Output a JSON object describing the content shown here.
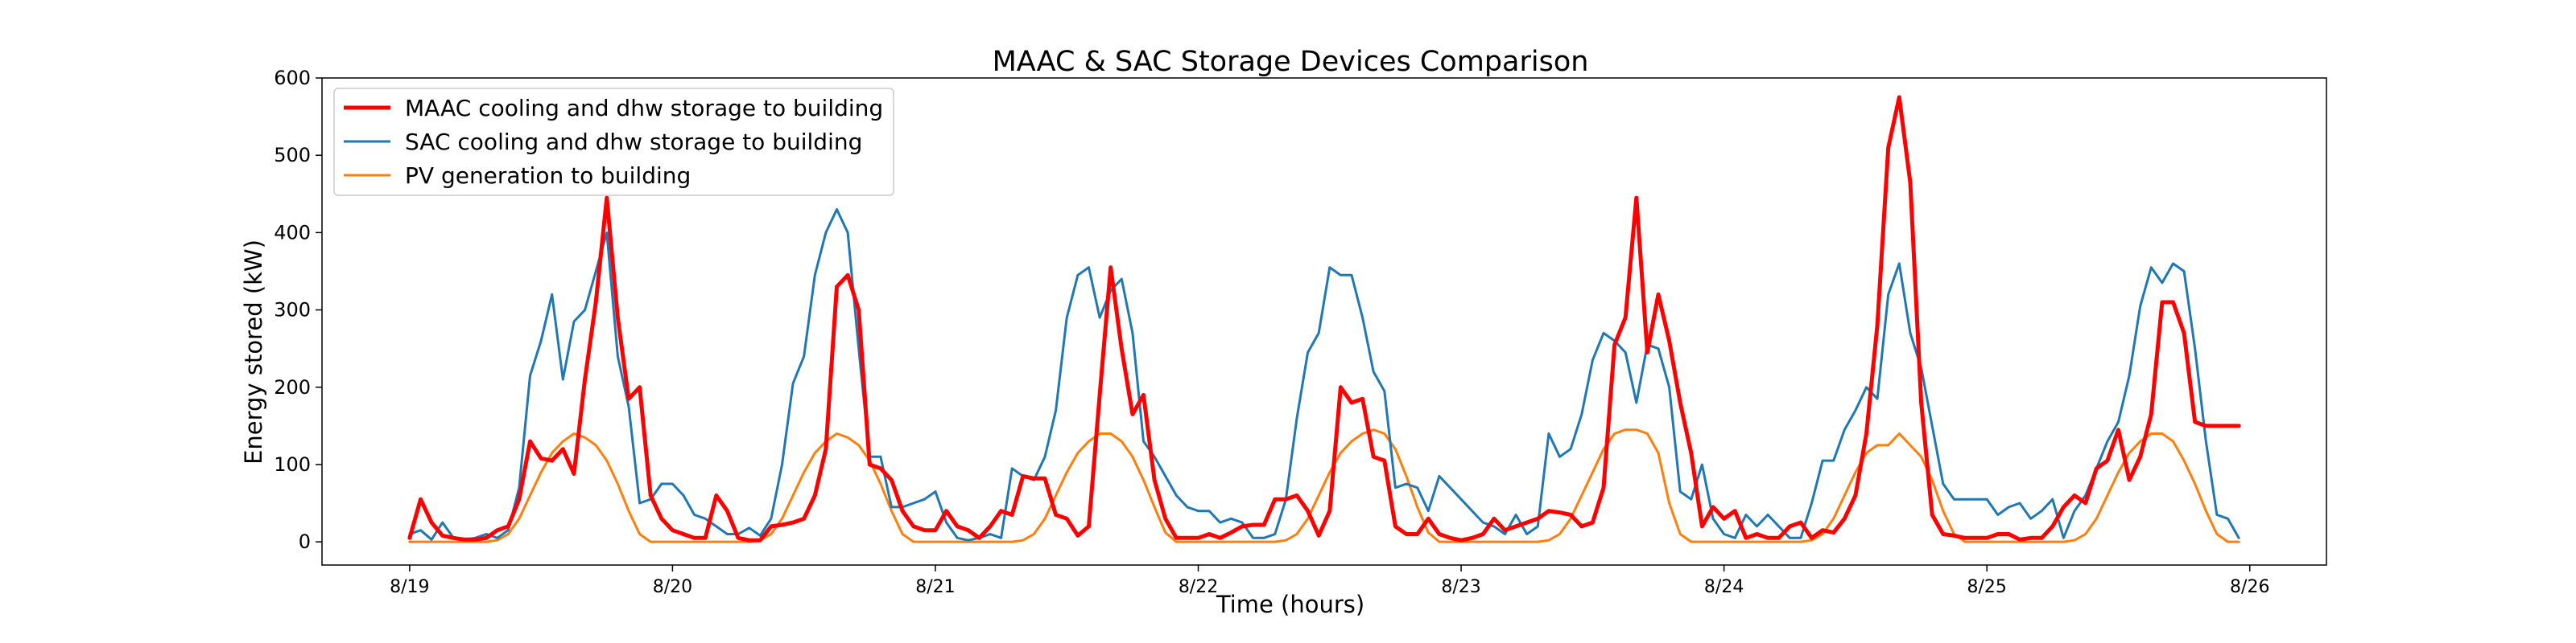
{
  "chart_data": {
    "type": "line",
    "title": "MAAC & SAC Storage Devices Comparison",
    "xlabel": "Time (hours)",
    "ylabel": "Energy stored (kW)",
    "ylim": [
      -30,
      600
    ],
    "yticks": [
      0,
      100,
      200,
      300,
      400,
      500,
      600
    ],
    "ytick_labels": [
      "0",
      "100",
      "200",
      "300",
      "400",
      "500",
      "600"
    ],
    "xlim_hours": [
      -8,
      175
    ],
    "xticks": [
      0,
      24,
      48,
      72,
      96,
      120,
      144,
      168
    ],
    "xtick_labels": [
      "8/19",
      "8/20",
      "8/21",
      "8/22",
      "8/23",
      "8/24",
      "8/25",
      "8/26"
    ],
    "x_units": "hours from 8/19 00:00, hourly samples 0 to 167",
    "grid": false,
    "legend": "top-left",
    "series": [
      {
        "name": "MAAC cooling and dhw storage to building",
        "color": "#ff0000",
        "linewidth": "thick",
        "values": [
          5,
          55,
          25,
          8,
          5,
          3,
          3,
          5,
          15,
          20,
          55,
          130,
          108,
          105,
          120,
          88,
          210,
          310,
          445,
          290,
          185,
          200,
          60,
          30,
          15,
          10,
          5,
          5,
          60,
          40,
          5,
          2,
          2,
          20,
          22,
          25,
          30,
          60,
          120,
          330,
          345,
          300,
          100,
          95,
          80,
          40,
          20,
          15,
          15,
          40,
          20,
          15,
          5,
          20,
          40,
          35,
          85,
          82,
          82,
          35,
          30,
          8,
          20,
          190,
          355,
          250,
          165,
          190,
          80,
          30,
          5,
          5,
          5,
          10,
          5,
          12,
          20,
          22,
          22,
          55,
          55,
          60,
          40,
          8,
          40,
          200,
          180,
          185,
          110,
          105,
          20,
          10,
          10,
          30,
          10,
          5,
          2,
          5,
          10,
          30,
          15,
          20,
          25,
          30,
          40,
          38,
          35,
          20,
          25,
          70,
          255,
          290,
          445,
          245,
          320,
          260,
          180,
          115,
          20,
          45,
          30,
          40,
          5,
          10,
          5,
          5,
          20,
          25,
          5,
          15,
          12,
          30,
          60,
          140,
          280,
          510,
          575,
          465,
          180,
          35,
          10,
          8,
          5,
          5,
          5,
          10,
          10,
          3,
          5,
          5,
          20,
          45,
          60,
          50,
          95,
          105,
          145,
          80,
          110,
          165,
          310,
          310,
          270,
          155,
          150,
          150,
          150,
          150
        ]
      },
      {
        "name": "SAC cooling and dhw storage to building",
        "color": "#1f77b4",
        "linewidth": "normal",
        "values": [
          10,
          15,
          3,
          25,
          5,
          3,
          5,
          10,
          5,
          15,
          70,
          215,
          260,
          320,
          210,
          285,
          300,
          350,
          400,
          240,
          175,
          50,
          55,
          75,
          75,
          60,
          35,
          30,
          20,
          10,
          10,
          18,
          8,
          30,
          100,
          205,
          240,
          345,
          400,
          430,
          400,
          250,
          110,
          110,
          45,
          45,
          50,
          55,
          65,
          25,
          5,
          2,
          5,
          10,
          5,
          95,
          85,
          80,
          110,
          170,
          290,
          345,
          355,
          290,
          325,
          340,
          270,
          130,
          110,
          85,
          60,
          45,
          40,
          40,
          25,
          30,
          25,
          5,
          5,
          10,
          55,
          160,
          245,
          270,
          355,
          345,
          345,
          290,
          220,
          195,
          70,
          75,
          70,
          40,
          85,
          70,
          55,
          40,
          25,
          20,
          10,
          35,
          10,
          20,
          140,
          110,
          120,
          165,
          235,
          270,
          260,
          245,
          180,
          255,
          250,
          200,
          65,
          55,
          100,
          30,
          10,
          5,
          35,
          20,
          35,
          20,
          5,
          5,
          50,
          105,
          105,
          145,
          170,
          200,
          185,
          320,
          360,
          270,
          225,
          150,
          75,
          55,
          55,
          55,
          55,
          35,
          45,
          50,
          30,
          40,
          55,
          5,
          40,
          60,
          95,
          130,
          155,
          215,
          305,
          355,
          335,
          360,
          350,
          250,
          130,
          35,
          30,
          5
        ]
      },
      {
        "name": "PV generation to building",
        "color": "#ff7f0e",
        "linewidth": "normal",
        "values": [
          0,
          0,
          0,
          0,
          0,
          0,
          0,
          0,
          2,
          10,
          30,
          60,
          90,
          115,
          130,
          140,
          135,
          125,
          105,
          75,
          40,
          10,
          0,
          0,
          0,
          0,
          0,
          0,
          0,
          0,
          0,
          0,
          2,
          10,
          30,
          60,
          90,
          115,
          130,
          140,
          135,
          125,
          105,
          75,
          40,
          10,
          0,
          0,
          0,
          0,
          0,
          0,
          0,
          0,
          0,
          0,
          2,
          10,
          30,
          60,
          90,
          115,
          130,
          140,
          140,
          130,
          110,
          80,
          45,
          12,
          0,
          0,
          0,
          0,
          0,
          0,
          0,
          0,
          0,
          0,
          2,
          10,
          30,
          60,
          90,
          115,
          130,
          140,
          145,
          140,
          120,
          85,
          45,
          12,
          0,
          0,
          0,
          0,
          0,
          0,
          0,
          0,
          0,
          0,
          2,
          10,
          30,
          60,
          90,
          120,
          140,
          145,
          145,
          140,
          115,
          50,
          10,
          0,
          0,
          0,
          0,
          0,
          0,
          0,
          0,
          0,
          0,
          0,
          2,
          10,
          30,
          60,
          90,
          115,
          125,
          125,
          140,
          125,
          110,
          80,
          40,
          10,
          0,
          0,
          0,
          0,
          0,
          0,
          0,
          0,
          0,
          0,
          2,
          10,
          30,
          60,
          90,
          115,
          130,
          140,
          140,
          130,
          105,
          75,
          40,
          10,
          0,
          0
        ]
      }
    ]
  }
}
